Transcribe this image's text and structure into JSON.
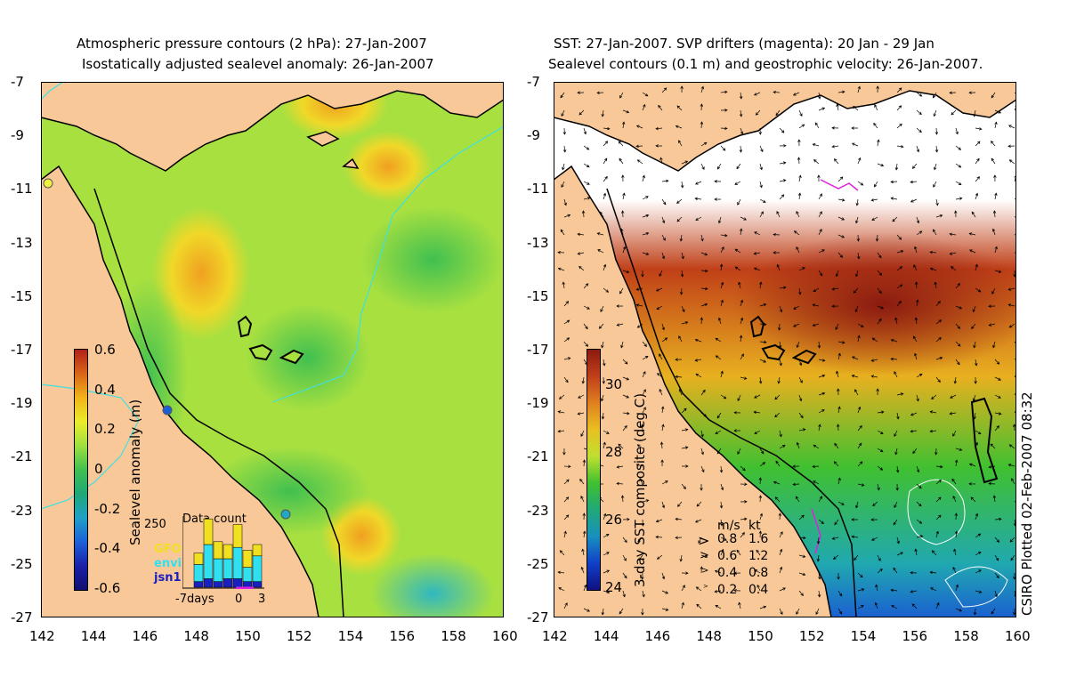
{
  "left_panel": {
    "title_line1": "Atmospheric pressure contours (2 hPa): 27-Jan-2007",
    "title_line2": "Isostatically adjusted sealevel anomaly: 26-Jan-2007",
    "colorbar": {
      "label": "Sealevel anomaly (m)",
      "ticks": [
        "0.6",
        "0.4",
        "0.2",
        "0",
        "-0.2",
        "-0.4",
        "-0.6"
      ],
      "colors": [
        "#b0201a",
        "#d9661a",
        "#f0b41a",
        "#ecec2a",
        "#9ee040",
        "#40c050",
        "#20a878",
        "#1fa0c8",
        "#1c60d8",
        "#1a20a8",
        "#101070"
      ]
    },
    "data_count": {
      "title": "Data count",
      "y_tick": "250",
      "x_start": "-7days",
      "x_zero": "0",
      "x_end": "3",
      "legend": [
        {
          "label": "GFO",
          "color": "#f0e020"
        },
        {
          "label": "envi",
          "color": "#30e0f0"
        },
        {
          "label": "jsn1",
          "color": "#1a20c0"
        }
      ],
      "stacks": [
        [
          0,
          0,
          0
        ],
        [
          40,
          60,
          20
        ],
        [
          90,
          120,
          30
        ],
        [
          60,
          80,
          20
        ],
        [
          50,
          70,
          30
        ],
        [
          80,
          110,
          30
        ],
        [
          60,
          50,
          20
        ],
        [
          40,
          90,
          20
        ]
      ]
    }
  },
  "right_panel": {
    "title_line1": "SST: 27-Jan-2007. SVP drifters (magenta): 20 Jan - 29 Jan",
    "title_line2": "Sealevel contours (0.1 m) and geostrophic velocity: 26-Jan-2007.",
    "colorbar": {
      "label": "3-day SST composite (deg C)",
      "ticks": [
        "30",
        "28",
        "26",
        "24"
      ],
      "colors": [
        "#8b1a10",
        "#c0401a",
        "#e08020",
        "#e8c020",
        "#c0e030",
        "#40c030",
        "#20a878",
        "#1890c0",
        "#1040c8",
        "#101080"
      ]
    },
    "velocity_legend": {
      "header_ms": "m/s",
      "header_kt": "kt",
      "rows": [
        {
          "ms": "0.8",
          "kt": "1.6"
        },
        {
          "ms": "0.6",
          "kt": "1.2"
        },
        {
          "ms": "0.4",
          "kt": "0.8"
        },
        {
          "ms": "0.2",
          "kt": "0.4"
        }
      ]
    },
    "credit": "CSIRO Plotted 02-Feb-2007 08:32"
  },
  "axes": {
    "x_ticks": [
      "142",
      "144",
      "146",
      "148",
      "150",
      "152",
      "154",
      "156",
      "158",
      "160"
    ],
    "y_ticks": [
      "-7",
      "-9",
      "-11",
      "-13",
      "-15",
      "-17",
      "-19",
      "-21",
      "-23",
      "-25",
      "-27"
    ]
  },
  "colors": {
    "land": "#f8c898",
    "coast": "#000000",
    "contour_cyan": "#40e0e0",
    "drifter": "#e020e0"
  }
}
